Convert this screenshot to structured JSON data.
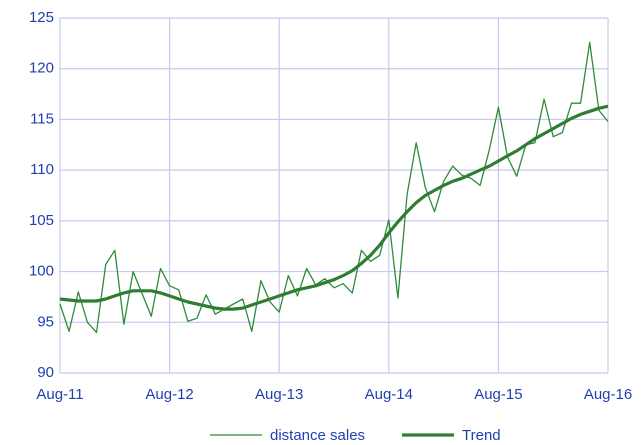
{
  "chart_data": {
    "type": "line",
    "categories": [
      "Aug-11",
      null,
      null,
      null,
      null,
      null,
      null,
      null,
      null,
      null,
      null,
      null,
      "Aug-12",
      null,
      null,
      null,
      null,
      null,
      null,
      null,
      null,
      null,
      null,
      null,
      "Aug-13",
      null,
      null,
      null,
      null,
      null,
      null,
      null,
      null,
      null,
      null,
      null,
      "Aug-14",
      null,
      null,
      null,
      null,
      null,
      null,
      null,
      null,
      null,
      null,
      null,
      "Aug-15",
      null,
      null,
      null,
      null,
      null,
      null,
      null,
      null,
      null,
      null,
      null,
      "Aug-16"
    ],
    "series": [
      {
        "name": "distance sales",
        "color": "#2e8b3a",
        "width": 1.3,
        "values": [
          96.8,
          94.1,
          98.0,
          95.0,
          94.0,
          100.7,
          102.1,
          94.8,
          100.0,
          97.8,
          95.6,
          100.3,
          98.6,
          98.2,
          95.1,
          95.4,
          97.7,
          95.8,
          96.3,
          96.8,
          97.3,
          94.1,
          99.1,
          97.0,
          96.0,
          99.6,
          97.6,
          100.3,
          98.7,
          99.3,
          98.4,
          98.8,
          97.9,
          102.1,
          101.0,
          101.6,
          105.1,
          97.4,
          107.6,
          112.7,
          108.3,
          105.9,
          108.9,
          110.4,
          109.5,
          109.2,
          108.5,
          112.0,
          116.2,
          111.3,
          109.4,
          112.5,
          112.7,
          117.0,
          113.3,
          113.7,
          116.6,
          116.6,
          122.6,
          115.9,
          114.8
        ]
      },
      {
        "name": "Trend",
        "color": "#2e7d32",
        "width": 3.2,
        "values": [
          97.3,
          97.2,
          97.1,
          97.1,
          97.1,
          97.3,
          97.6,
          97.9,
          98.1,
          98.1,
          98.1,
          97.9,
          97.6,
          97.3,
          97.0,
          96.8,
          96.6,
          96.4,
          96.3,
          96.3,
          96.4,
          96.7,
          97.0,
          97.3,
          97.6,
          97.9,
          98.2,
          98.4,
          98.6,
          98.9,
          99.2,
          99.6,
          100.1,
          100.8,
          101.6,
          102.6,
          103.8,
          104.9,
          105.9,
          106.8,
          107.5,
          108.0,
          108.5,
          108.9,
          109.2,
          109.6,
          110.0,
          110.4,
          110.9,
          111.4,
          111.9,
          112.5,
          113.1,
          113.6,
          114.1,
          114.6,
          115.1,
          115.5,
          115.8,
          116.1,
          116.3
        ]
      }
    ],
    "ylim": [
      90,
      125
    ],
    "yticks": [
      90,
      95,
      100,
      105,
      110,
      115,
      120,
      125
    ],
    "grid": true,
    "legend": "bottom"
  }
}
